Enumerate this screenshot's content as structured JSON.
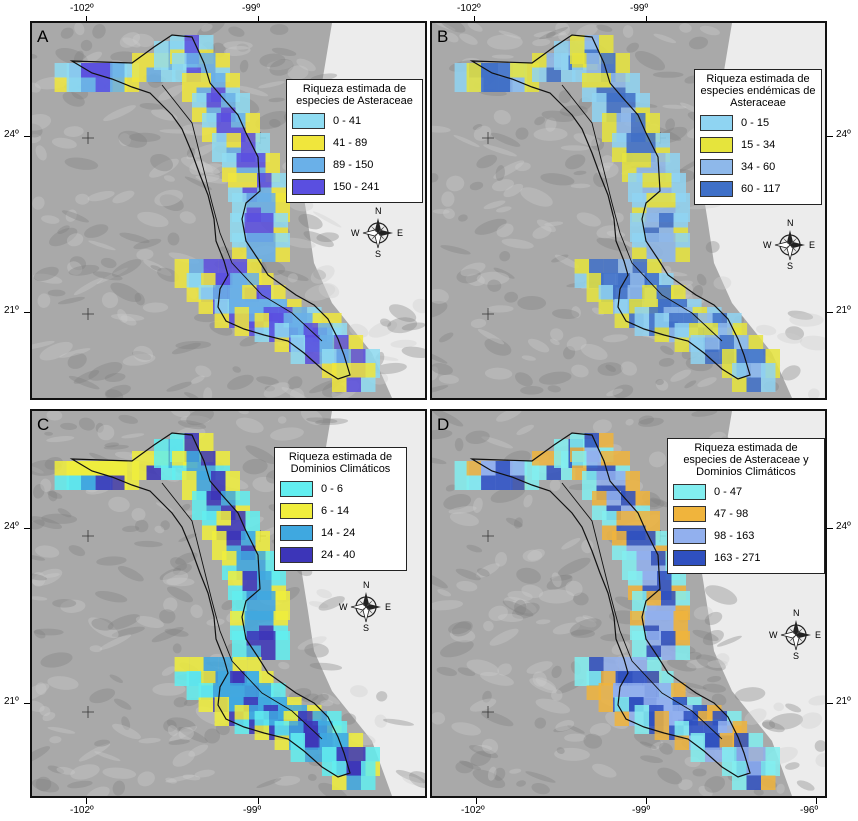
{
  "axis": {
    "lon_labels": [
      "-102º",
      "-99º",
      "-96º"
    ],
    "lat_labels": [
      "24º",
      "21º"
    ]
  },
  "compass": {
    "n": "N",
    "s": "S",
    "e": "E",
    "w": "W"
  },
  "colors": {
    "map_bg": "#a9a9a9",
    "sea": "#ececec",
    "outline": "#111111"
  },
  "panels": [
    {
      "letter": "A",
      "legend_title": "Riqueza estimada de especies de Asteraceae",
      "classes": [
        {
          "label": "0 - 41",
          "color": "#8fdcf2"
        },
        {
          "label": "41 - 89",
          "color": "#f0e63c"
        },
        {
          "label": "89 - 150",
          "color": "#6ab0e8"
        },
        {
          "label": "150 - 241",
          "color": "#5a4fe0"
        }
      ]
    },
    {
      "letter": "B",
      "legend_title": "Riqueza estimada de especies endémicas de Asteraceae",
      "classes": [
        {
          "label": "0 - 15",
          "color": "#8fd4f2"
        },
        {
          "label": "15 - 34",
          "color": "#e6e43c"
        },
        {
          "label": "34 - 60",
          "color": "#8eb8ea"
        },
        {
          "label": "60 - 117",
          "color": "#3f70c8"
        }
      ]
    },
    {
      "letter": "C",
      "legend_title": "Riqueza estimada de Dominios Climáticos",
      "classes": [
        {
          "label": "0 - 6",
          "color": "#62eef0"
        },
        {
          "label": "6 - 14",
          "color": "#f0ee3c"
        },
        {
          "label": "14 - 24",
          "color": "#3fa8e0"
        },
        {
          "label": "24 - 40",
          "color": "#3c35b8"
        }
      ]
    },
    {
      "letter": "D",
      "legend_title": "Riqueza estimada de especies de Asteraceae y Dominios Climáticos",
      "classes": [
        {
          "label": "0 - 47",
          "color": "#82eef0"
        },
        {
          "label": "47 - 98",
          "color": "#f0b43c"
        },
        {
          "label": "98 - 163",
          "color": "#92b0ee"
        },
        {
          "label": "163 - 271",
          "color": "#2f50c0"
        }
      ]
    }
  ]
}
